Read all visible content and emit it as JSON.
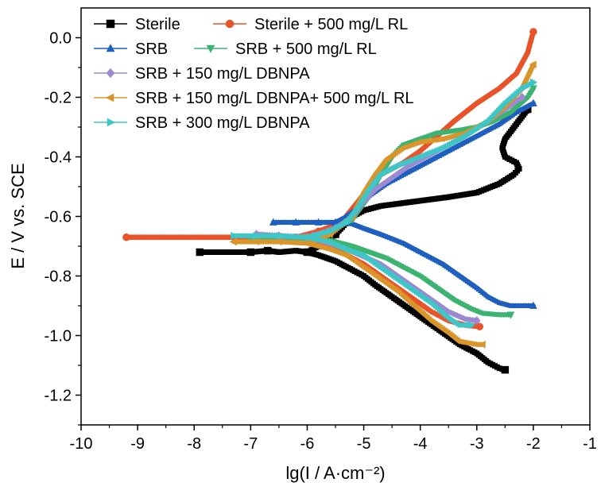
{
  "chart_data": {
    "type": "line",
    "xlabel": "lg(I / A·cm⁻²)",
    "ylabel": "E / V vs. SCE",
    "xlim": [
      -10,
      -1
    ],
    "ylim": [
      -1.3,
      0.1
    ],
    "xticks": [
      -10,
      -9,
      -8,
      -7,
      -6,
      -5,
      -4,
      -3,
      -2,
      -1
    ],
    "xtick_labels": [
      "-10",
      "-9",
      "-8",
      "-7",
      "-6",
      "-5",
      "-4",
      "-3",
      "-2",
      "-1"
    ],
    "yticks": [
      0.0,
      -0.2,
      -0.4,
      -0.6,
      -0.8,
      -1.0,
      -1.2
    ],
    "ytick_labels": [
      "0.0",
      "-0.2",
      "-0.4",
      "-0.6",
      "-0.8",
      "-1.0",
      "-1.2"
    ],
    "grid": false,
    "legend_position": "top-left",
    "series": [
      {
        "name": "Sterile",
        "color": "#000000",
        "marker": "square",
        "cathodic": [
          [
            -7.9,
            -0.72
          ],
          [
            -7.0,
            -0.72
          ],
          [
            -6.7,
            -0.715
          ],
          [
            -6.5,
            -0.72
          ],
          [
            -6.2,
            -0.715
          ],
          [
            -6.0,
            -0.72
          ],
          [
            -5.8,
            -0.73
          ],
          [
            -5.5,
            -0.75
          ],
          [
            -5.2,
            -0.78
          ],
          [
            -5.0,
            -0.8
          ],
          [
            -4.8,
            -0.83
          ],
          [
            -4.5,
            -0.87
          ],
          [
            -4.2,
            -0.91
          ],
          [
            -3.9,
            -0.95
          ],
          [
            -3.6,
            -0.99
          ],
          [
            -3.3,
            -1.03
          ],
          [
            -3.0,
            -1.06
          ],
          [
            -2.8,
            -1.09
          ],
          [
            -2.6,
            -1.11
          ],
          [
            -2.5,
            -1.115
          ]
        ],
        "anodic": [
          [
            -6.0,
            -0.72
          ],
          [
            -5.7,
            -0.69
          ],
          [
            -5.5,
            -0.66
          ],
          [
            -5.2,
            -0.6
          ],
          [
            -5.0,
            -0.58
          ],
          [
            -4.7,
            -0.565
          ],
          [
            -4.3,
            -0.555
          ],
          [
            -3.9,
            -0.545
          ],
          [
            -3.5,
            -0.535
          ],
          [
            -3.0,
            -0.52
          ],
          [
            -2.6,
            -0.49
          ],
          [
            -2.35,
            -0.46
          ],
          [
            -2.25,
            -0.44
          ],
          [
            -2.3,
            -0.42
          ],
          [
            -2.5,
            -0.4
          ],
          [
            -2.55,
            -0.37
          ],
          [
            -2.5,
            -0.34
          ],
          [
            -2.3,
            -0.29
          ],
          [
            -2.1,
            -0.24
          ]
        ]
      },
      {
        "name": "Sterile + 500 mg/L RL",
        "color": "#e8532a",
        "marker": "circle",
        "cathodic": [
          [
            -9.2,
            -0.67
          ],
          [
            -7.0,
            -0.67
          ],
          [
            -6.5,
            -0.67
          ],
          [
            -6.0,
            -0.68
          ],
          [
            -5.6,
            -0.7
          ],
          [
            -5.3,
            -0.73
          ],
          [
            -5.0,
            -0.76
          ],
          [
            -4.7,
            -0.8
          ],
          [
            -4.4,
            -0.84
          ],
          [
            -4.1,
            -0.88
          ],
          [
            -3.8,
            -0.92
          ],
          [
            -3.5,
            -0.95
          ],
          [
            -3.2,
            -0.965
          ],
          [
            -2.95,
            -0.97
          ]
        ],
        "anodic": [
          [
            -6.2,
            -0.67
          ],
          [
            -5.8,
            -0.65
          ],
          [
            -5.4,
            -0.62
          ],
          [
            -5.1,
            -0.55
          ],
          [
            -4.9,
            -0.5
          ],
          [
            -4.7,
            -0.46
          ],
          [
            -4.5,
            -0.44
          ],
          [
            -4.3,
            -0.42
          ],
          [
            -4.0,
            -0.38
          ],
          [
            -3.7,
            -0.33
          ],
          [
            -3.4,
            -0.28
          ],
          [
            -3.0,
            -0.22
          ],
          [
            -2.6,
            -0.17
          ],
          [
            -2.3,
            -0.12
          ],
          [
            -2.1,
            -0.05
          ],
          [
            -2.0,
            0.02
          ]
        ]
      },
      {
        "name": "SRB",
        "color": "#1f5fbf",
        "marker": "triangle-up",
        "cathodic": [
          [
            -6.6,
            -0.62
          ],
          [
            -6.2,
            -0.62
          ],
          [
            -5.8,
            -0.62
          ],
          [
            -5.5,
            -0.62
          ],
          [
            -5.2,
            -0.625
          ],
          [
            -5.0,
            -0.64
          ],
          [
            -4.7,
            -0.66
          ],
          [
            -4.3,
            -0.69
          ],
          [
            -4.0,
            -0.72
          ],
          [
            -3.6,
            -0.76
          ],
          [
            -3.3,
            -0.8
          ],
          [
            -3.0,
            -0.84
          ],
          [
            -2.8,
            -0.87
          ],
          [
            -2.6,
            -0.89
          ],
          [
            -2.4,
            -0.9
          ],
          [
            -2.0,
            -0.9
          ]
        ],
        "anodic": [
          [
            -5.5,
            -0.62
          ],
          [
            -5.3,
            -0.6
          ],
          [
            -5.1,
            -0.57
          ],
          [
            -4.9,
            -0.53
          ],
          [
            -4.6,
            -0.49
          ],
          [
            -4.3,
            -0.46
          ],
          [
            -4.0,
            -0.43
          ],
          [
            -3.7,
            -0.4
          ],
          [
            -3.4,
            -0.37
          ],
          [
            -3.0,
            -0.33
          ],
          [
            -2.6,
            -0.29
          ],
          [
            -2.3,
            -0.25
          ],
          [
            -2.0,
            -0.22
          ]
        ]
      },
      {
        "name": "SRB + 500 mg/L RL",
        "color": "#3cb371",
        "marker": "triangle-down",
        "cathodic": [
          [
            -7.0,
            -0.68
          ],
          [
            -6.5,
            -0.675
          ],
          [
            -6.0,
            -0.675
          ],
          [
            -5.6,
            -0.68
          ],
          [
            -5.2,
            -0.7
          ],
          [
            -4.9,
            -0.72
          ],
          [
            -4.6,
            -0.74
          ],
          [
            -4.3,
            -0.77
          ],
          [
            -4.0,
            -0.8
          ],
          [
            -3.7,
            -0.84
          ],
          [
            -3.4,
            -0.88
          ],
          [
            -3.1,
            -0.91
          ],
          [
            -2.9,
            -0.925
          ],
          [
            -2.6,
            -0.93
          ],
          [
            -2.4,
            -0.93
          ]
        ],
        "anodic": [
          [
            -6.0,
            -0.675
          ],
          [
            -5.6,
            -0.65
          ],
          [
            -5.2,
            -0.61
          ],
          [
            -4.9,
            -0.53
          ],
          [
            -4.7,
            -0.46
          ],
          [
            -4.5,
            -0.4
          ],
          [
            -4.3,
            -0.36
          ],
          [
            -4.0,
            -0.34
          ],
          [
            -3.7,
            -0.32
          ],
          [
            -3.3,
            -0.31
          ],
          [
            -3.0,
            -0.3
          ],
          [
            -2.7,
            -0.28
          ],
          [
            -2.4,
            -0.25
          ],
          [
            -2.1,
            -0.2
          ],
          [
            -2.0,
            -0.17
          ]
        ]
      },
      {
        "name": "SRB + 150 mg/L DBNPA",
        "color": "#9b8ad0",
        "marker": "diamond",
        "cathodic": [
          [
            -6.9,
            -0.66
          ],
          [
            -6.5,
            -0.665
          ],
          [
            -6.0,
            -0.67
          ],
          [
            -5.6,
            -0.69
          ],
          [
            -5.3,
            -0.71
          ],
          [
            -5.0,
            -0.735
          ],
          [
            -4.7,
            -0.76
          ],
          [
            -4.4,
            -0.8
          ],
          [
            -4.1,
            -0.84
          ],
          [
            -3.8,
            -0.88
          ],
          [
            -3.5,
            -0.92
          ],
          [
            -3.2,
            -0.945
          ],
          [
            -3.0,
            -0.95
          ]
        ],
        "anodic": [
          [
            -5.9,
            -0.665
          ],
          [
            -5.5,
            -0.64
          ],
          [
            -5.2,
            -0.6
          ],
          [
            -5.0,
            -0.55
          ],
          [
            -4.8,
            -0.51
          ],
          [
            -4.5,
            -0.47
          ],
          [
            -4.2,
            -0.43
          ],
          [
            -3.9,
            -0.4
          ],
          [
            -3.6,
            -0.37
          ],
          [
            -3.2,
            -0.33
          ],
          [
            -2.8,
            -0.28
          ],
          [
            -2.5,
            -0.24
          ],
          [
            -2.2,
            -0.2
          ]
        ]
      },
      {
        "name": "SRB + 150 mg/L DBNPA+ 500 mg/L RL",
        "color": "#d9952b",
        "marker": "triangle-left",
        "cathodic": [
          [
            -7.3,
            -0.685
          ],
          [
            -6.9,
            -0.685
          ],
          [
            -6.5,
            -0.685
          ],
          [
            -6.0,
            -0.69
          ],
          [
            -5.6,
            -0.71
          ],
          [
            -5.3,
            -0.73
          ],
          [
            -5.0,
            -0.77
          ],
          [
            -4.7,
            -0.81
          ],
          [
            -4.4,
            -0.85
          ],
          [
            -4.1,
            -0.9
          ],
          [
            -3.8,
            -0.95
          ],
          [
            -3.5,
            -0.99
          ],
          [
            -3.3,
            -1.02
          ],
          [
            -3.0,
            -1.03
          ],
          [
            -2.9,
            -1.03
          ]
        ],
        "anodic": [
          [
            -6.0,
            -0.69
          ],
          [
            -5.6,
            -0.66
          ],
          [
            -5.2,
            -0.6
          ],
          [
            -5.0,
            -0.52
          ],
          [
            -4.8,
            -0.46
          ],
          [
            -4.6,
            -0.41
          ],
          [
            -4.3,
            -0.37
          ],
          [
            -4.0,
            -0.35
          ],
          [
            -3.6,
            -0.34
          ],
          [
            -3.2,
            -0.32
          ],
          [
            -2.8,
            -0.28
          ],
          [
            -2.5,
            -0.23
          ],
          [
            -2.2,
            -0.17
          ],
          [
            -2.0,
            -0.09
          ]
        ]
      },
      {
        "name": "SRB + 300 mg/L DBNPA",
        "color": "#3fc6c6",
        "marker": "triangle-right",
        "cathodic": [
          [
            -7.3,
            -0.665
          ],
          [
            -6.9,
            -0.665
          ],
          [
            -6.5,
            -0.665
          ],
          [
            -6.0,
            -0.67
          ],
          [
            -5.6,
            -0.685
          ],
          [
            -5.3,
            -0.71
          ],
          [
            -5.0,
            -0.73
          ],
          [
            -4.7,
            -0.77
          ],
          [
            -4.4,
            -0.81
          ],
          [
            -4.1,
            -0.85
          ],
          [
            -3.8,
            -0.89
          ],
          [
            -3.5,
            -0.94
          ],
          [
            -3.3,
            -0.965
          ],
          [
            -3.1,
            -0.965
          ]
        ],
        "anodic": [
          [
            -6.0,
            -0.67
          ],
          [
            -5.6,
            -0.65
          ],
          [
            -5.3,
            -0.62
          ],
          [
            -5.1,
            -0.57
          ],
          [
            -4.9,
            -0.51
          ],
          [
            -4.7,
            -0.46
          ],
          [
            -4.4,
            -0.43
          ],
          [
            -4.0,
            -0.4
          ],
          [
            -3.6,
            -0.37
          ],
          [
            -3.2,
            -0.33
          ],
          [
            -2.8,
            -0.28
          ],
          [
            -2.5,
            -0.22
          ],
          [
            -2.2,
            -0.17
          ],
          [
            -2.0,
            -0.15
          ]
        ]
      }
    ]
  }
}
